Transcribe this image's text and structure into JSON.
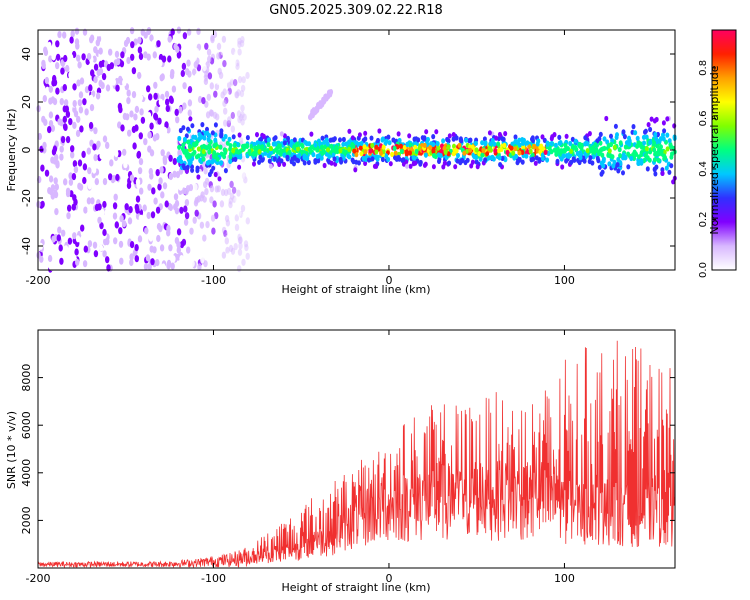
{
  "title": "GN05.2025.309.02.22.R18",
  "chart_data": [
    {
      "type": "heatmap",
      "name": "spectrogram",
      "xlabel": "Height of straight line (km)",
      "ylabel": "Frequency (Hz)",
      "xlim": [
        -200,
        163
      ],
      "ylim": [
        -50,
        50
      ],
      "xticks": [
        -200,
        -100,
        0,
        100
      ],
      "yticks": [
        -40,
        -20,
        0,
        20,
        40
      ],
      "noise_region_x": [
        -200,
        -80
      ],
      "signal_band": {
        "x_start": -120,
        "x_end": 163,
        "center_hz": 0,
        "half_width_hz": 5
      },
      "streak": {
        "x": [
          -45,
          -33
        ],
        "y": [
          14,
          24
        ]
      },
      "colorbar": {
        "label": "Normalized spectral amplitude",
        "range": [
          0,
          0.95
        ],
        "ticks": [
          0.0,
          0.2,
          0.4,
          0.6,
          0.8
        ],
        "tick_labels": [
          "0.0",
          "0.2",
          "0.4",
          "0.6",
          "0.8"
        ],
        "colors": [
          "#ffffff",
          "#d8b8ff",
          "#8000ff",
          "#3030ff",
          "#00c8ff",
          "#00ff80",
          "#80ff00",
          "#ffff00",
          "#ffa000",
          "#ff2000",
          "#ff0060"
        ]
      }
    },
    {
      "type": "line",
      "name": "snr",
      "xlabel": "Height of straight line (km)",
      "ylabel": "SNR (10 * v/v)",
      "xlim": [
        -200,
        163
      ],
      "ylim": [
        0,
        10000
      ],
      "xticks": [
        -200,
        -100,
        0,
        100
      ],
      "yticks": [
        2000,
        4000,
        6000,
        8000
      ],
      "color": "#f03030",
      "envelope": {
        "x": [
          -200,
          -130,
          -110,
          -90,
          -80,
          -75,
          -65,
          -55,
          -45,
          -35,
          -25,
          -15,
          -5,
          0,
          10,
          20,
          30,
          40,
          50,
          60,
          70,
          80,
          90,
          100,
          110,
          120,
          130,
          140,
          150,
          163
        ],
        "base": [
          100,
          110,
          180,
          300,
          450,
          600,
          700,
          900,
          1300,
          1600,
          2200,
          2800,
          3200,
          3300,
          3500,
          3600,
          3700,
          3700,
          3750,
          3800,
          3800,
          3700,
          3500,
          3300,
          3200,
          3100,
          3000,
          2900,
          2900,
          2800
        ],
        "peak": [
          220,
          240,
          350,
          600,
          900,
          1200,
          1900,
          2400,
          3000,
          3500,
          4100,
          4600,
          5200,
          6000,
          6400,
          6800,
          7000,
          7000,
          7100,
          7400,
          7400,
          7500,
          7800,
          8800,
          9300,
          9600,
          9700,
          9400,
          9000,
          8600
        ]
      }
    }
  ]
}
